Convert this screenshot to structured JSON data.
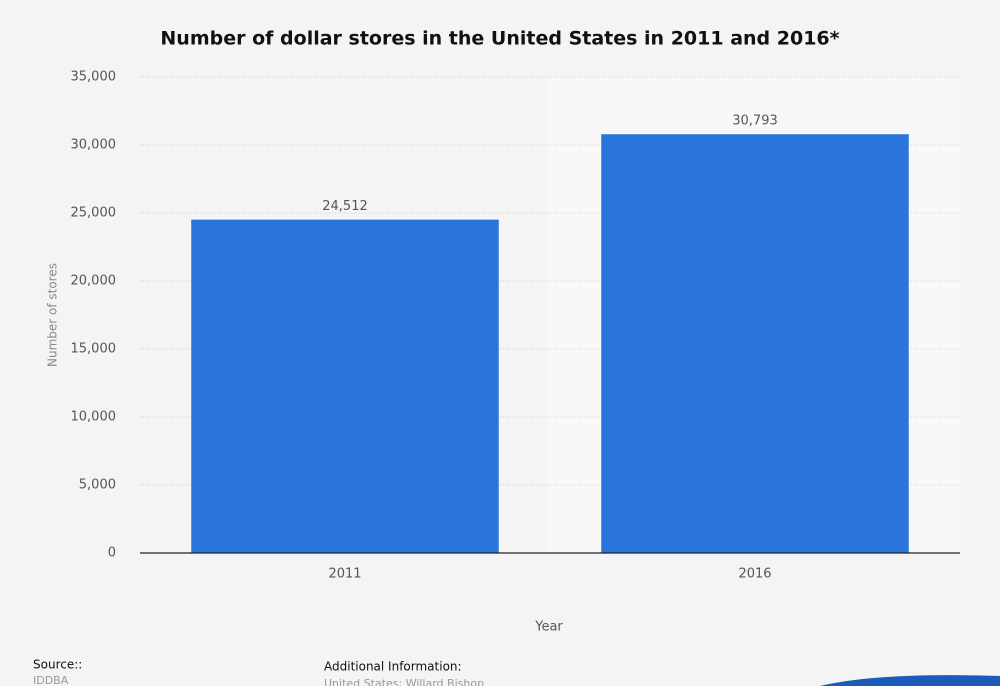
{
  "chart_data": {
    "type": "bar",
    "title": "Number of dollar stores in the United States in 2011 and 2016*",
    "categories": [
      "2011",
      "2016"
    ],
    "values": [
      24512,
      30793
    ],
    "value_labels": [
      "24,512",
      "30,793"
    ],
    "color": "#2a75dc",
    "x_label": "Year",
    "y_label": "Number of stores",
    "ylim": [
      0,
      35000
    ],
    "yticks": [
      0,
      {
        "value": 5000,
        "label": "5,000"
      },
      {
        "value": 10000,
        "label": "10,000"
      },
      {
        "value": 15000,
        "label": "15,000"
      },
      {
        "value": 20000,
        "label": "20,000"
      },
      {
        "value": 25000,
        "label": "25,000"
      },
      {
        "value": 30000,
        "label": "30,000"
      },
      {
        "value": 35000,
        "label": "35,000"
      }
    ],
    "grid": true
  },
  "footer": {
    "source_label": "Source::",
    "source": "IDDBA",
    "info_label": "Additional Information:",
    "info": "United States; Willard Bishop"
  }
}
